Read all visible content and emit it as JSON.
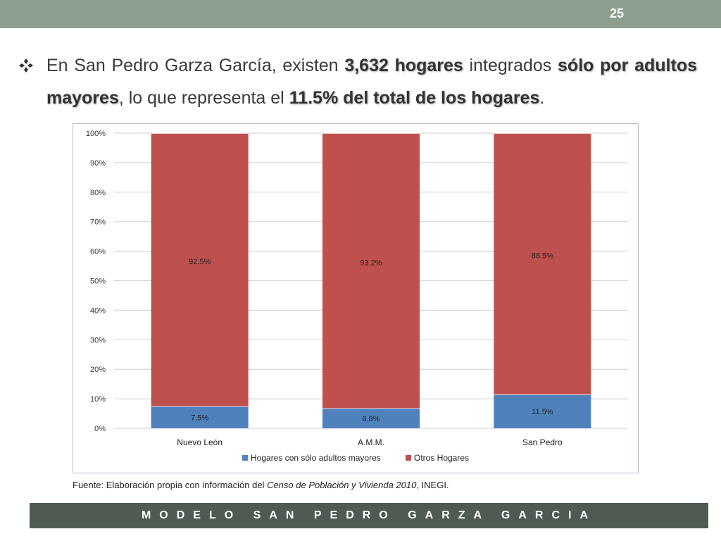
{
  "slide": {
    "page_number": "25",
    "bullet": {
      "t1": "En San Pedro Garza García, existen ",
      "b1": "3,632 hogares",
      "t2": " integrados ",
      "b2": "sólo por adultos mayores",
      "t3": ", lo que representa el ",
      "b3": "11.5% del total de los hogares",
      "t4": "."
    },
    "source": {
      "prefix": "Fuente: Elaboración propia con información del ",
      "italic": "Censo de Población y Vivienda  2010",
      "suffix": ", INEGI."
    },
    "footer": "MODELO SAN PEDRO GARZA GARCIA"
  },
  "chart_data": {
    "type": "bar",
    "stacked": true,
    "categories": [
      "Nuevo León",
      "A.M.M.",
      "San Pedro"
    ],
    "series": [
      {
        "name": "Hogares con sólo adultos mayores",
        "values": [
          7.5,
          6.8,
          11.5
        ],
        "labels": [
          "7.5%",
          "6.8%",
          "11.5%"
        ],
        "color": "#4f81bd"
      },
      {
        "name": "Otros Hogares",
        "values": [
          92.5,
          93.2,
          88.5
        ],
        "labels": [
          "92.5%",
          "93.2%",
          "88.5%"
        ],
        "color": "#c0504d"
      }
    ],
    "ylim": [
      0,
      100
    ],
    "yticks": [
      "0%",
      "10%",
      "20%",
      "30%",
      "40%",
      "50%",
      "60%",
      "70%",
      "80%",
      "90%",
      "100%"
    ],
    "grid": true,
    "legend_position": "bottom"
  }
}
